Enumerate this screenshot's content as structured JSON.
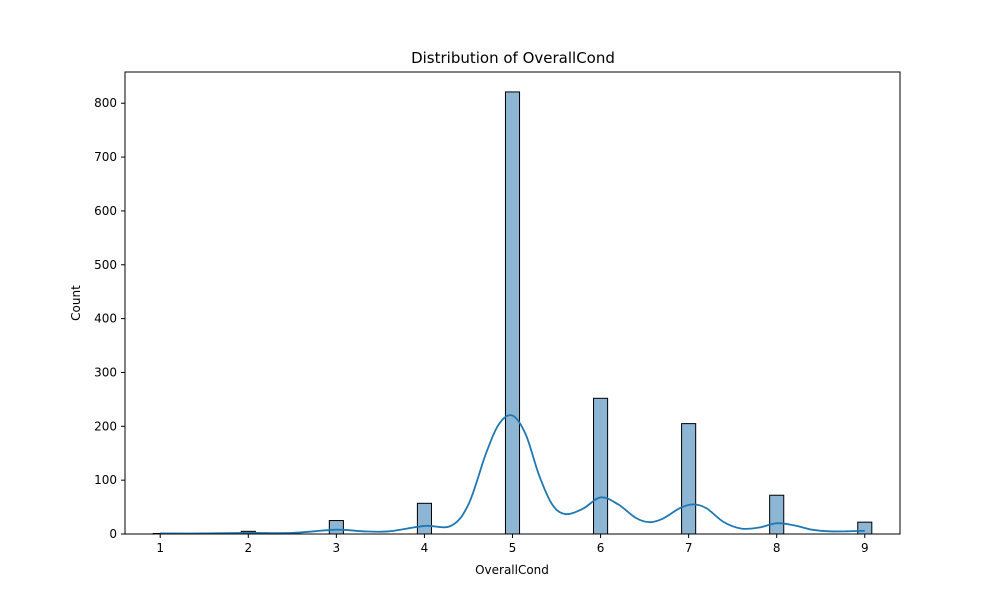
{
  "chart_data": {
    "type": "bar",
    "title": "Distribution of OverallCond",
    "xlabel": "OverallCond",
    "ylabel": "Count",
    "xlim": [
      0.6,
      9.4
    ],
    "ylim": [
      0,
      858
    ],
    "x_ticks": [
      1,
      2,
      3,
      4,
      5,
      6,
      7,
      8,
      9
    ],
    "y_ticks": [
      0,
      100,
      200,
      300,
      400,
      500,
      600,
      700,
      800
    ],
    "bin_width": 0.16,
    "bars": [
      {
        "x": 1,
        "value": 1
      },
      {
        "x": 2,
        "value": 5
      },
      {
        "x": 3,
        "value": 25
      },
      {
        "x": 4,
        "value": 57
      },
      {
        "x": 5,
        "value": 821
      },
      {
        "x": 6,
        "value": 252
      },
      {
        "x": 7,
        "value": 205
      },
      {
        "x": 8,
        "value": 72
      },
      {
        "x": 9,
        "value": 22
      }
    ],
    "kde": {
      "x": [
        1,
        1.5,
        2,
        2.5,
        3,
        3.3,
        3.6,
        4,
        4.3,
        4.5,
        4.7,
        4.85,
        5,
        5.15,
        5.3,
        5.45,
        5.6,
        5.8,
        6,
        6.2,
        6.4,
        6.55,
        6.7,
        6.9,
        7.05,
        7.2,
        7.4,
        7.6,
        7.8,
        8,
        8.2,
        8.4,
        8.6,
        8.8,
        9
      ],
      "y": [
        1,
        1,
        2,
        2,
        8,
        5,
        5,
        15,
        15,
        55,
        150,
        205,
        220,
        185,
        110,
        55,
        37,
        47,
        68,
        55,
        30,
        22,
        28,
        48,
        55,
        48,
        22,
        10,
        12,
        20,
        16,
        8,
        5,
        5,
        6
      ]
    },
    "grid": false,
    "bar_color": "#8db5d4",
    "bar_edge_color": "#000000",
    "kde_color": "#1f77b4"
  }
}
